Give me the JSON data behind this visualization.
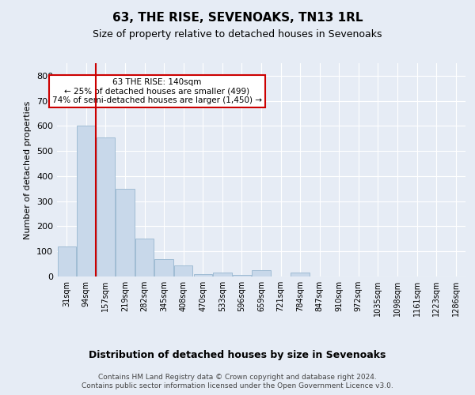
{
  "title": "63, THE RISE, SEVENOAKS, TN13 1RL",
  "subtitle": "Size of property relative to detached houses in Sevenoaks",
  "xlabel": "Distribution of detached houses by size in Sevenoaks",
  "ylabel": "Number of detached properties",
  "footnote1": "Contains HM Land Registry data © Crown copyright and database right 2024.",
  "footnote2": "Contains public sector information licensed under the Open Government Licence v3.0.",
  "categories": [
    "31sqm",
    "94sqm",
    "157sqm",
    "219sqm",
    "282sqm",
    "345sqm",
    "408sqm",
    "470sqm",
    "533sqm",
    "596sqm",
    "659sqm",
    "721sqm",
    "784sqm",
    "847sqm",
    "910sqm",
    "972sqm",
    "1035sqm",
    "1098sqm",
    "1161sqm",
    "1223sqm",
    "1286sqm"
  ],
  "values": [
    120,
    600,
    555,
    348,
    150,
    70,
    45,
    10,
    15,
    5,
    25,
    0,
    15,
    0,
    0,
    0,
    0,
    0,
    0,
    0,
    0
  ],
  "bar_color": "#c8d8ea",
  "bar_edge_color": "#a0bcd4",
  "bg_color": "#e6ecf5",
  "plot_bg_color": "#e6ecf5",
  "grid_color": "#ffffff",
  "red_line_x": 1.5,
  "annotation_text": "63 THE RISE: 140sqm\n← 25% of detached houses are smaller (499)\n74% of semi-detached houses are larger (1,450) →",
  "annotation_box_color": "#ffffff",
  "annotation_border_color": "#cc0000",
  "ylim": [
    0,
    850
  ],
  "yticks": [
    0,
    100,
    200,
    300,
    400,
    500,
    600,
    700,
    800
  ]
}
